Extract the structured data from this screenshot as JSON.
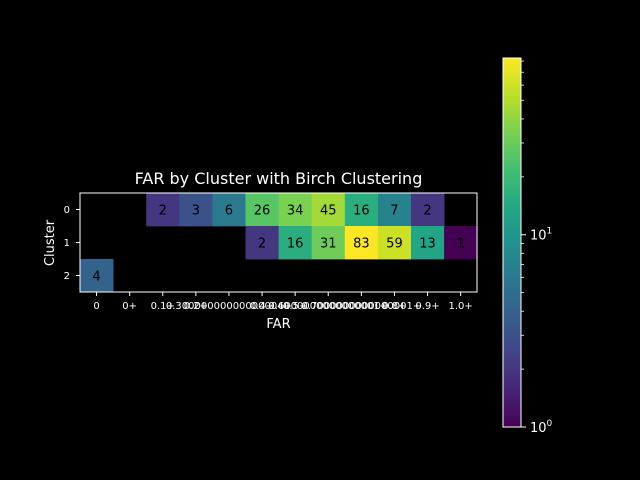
{
  "chart_data": {
    "type": "heatmap",
    "title": "FAR by Cluster with Birch Clustering",
    "xlabel": "FAR",
    "ylabel": "Cluster",
    "x_ticks": [
      "0",
      "0+",
      "0.1+",
      "0.2+",
      "0.30000000000000004+",
      "0.4+",
      "0.5+",
      "0.6000000000000001+",
      "0.7000000000000001+",
      "0.8+",
      "0.9+",
      "1.0+"
    ],
    "y_ticks": [
      "0",
      "1",
      "2"
    ],
    "values": [
      [
        null,
        null,
        2,
        3,
        6,
        26,
        34,
        45,
        16,
        7,
        2,
        null
      ],
      [
        null,
        null,
        null,
        null,
        null,
        2,
        16,
        31,
        83,
        59,
        13,
        1
      ],
      [
        4,
        null,
        null,
        null,
        null,
        null,
        null,
        null,
        null,
        null,
        null,
        null
      ]
    ],
    "colorbar": {
      "scale": "log",
      "range": [
        1,
        83
      ],
      "colormap": "viridis",
      "tick_labels": [
        "10^0",
        "10^1"
      ]
    },
    "background": "#000000",
    "text_color": "#ffffff"
  }
}
